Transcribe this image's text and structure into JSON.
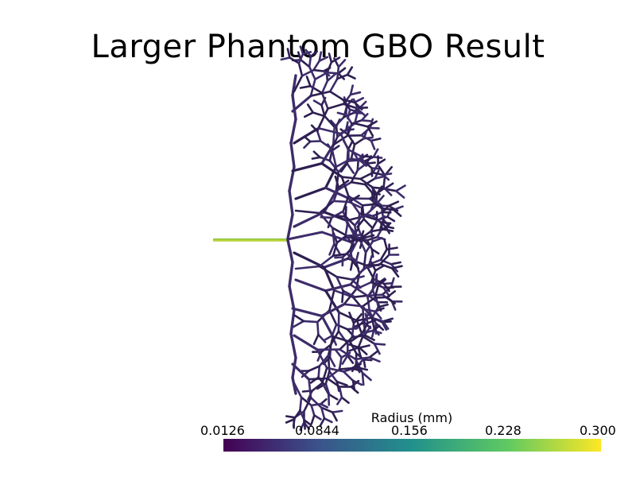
{
  "title": "Larger Phantom GBO Result",
  "colorbar": {
    "title": "Radius (mm)",
    "ticks": [
      "0.0126",
      "0.0844",
      "0.156",
      "0.228",
      "0.300"
    ],
    "colormap": "viridis",
    "range": [
      0.0126,
      0.3
    ],
    "stops": [
      "#440154",
      "#3b528b",
      "#21918c",
      "#5ec962",
      "#fde725"
    ]
  },
  "colors": {
    "vessel": "#3d2c6a",
    "vessel_dark": "#2e1f52",
    "inlet": "#b5d336"
  }
}
